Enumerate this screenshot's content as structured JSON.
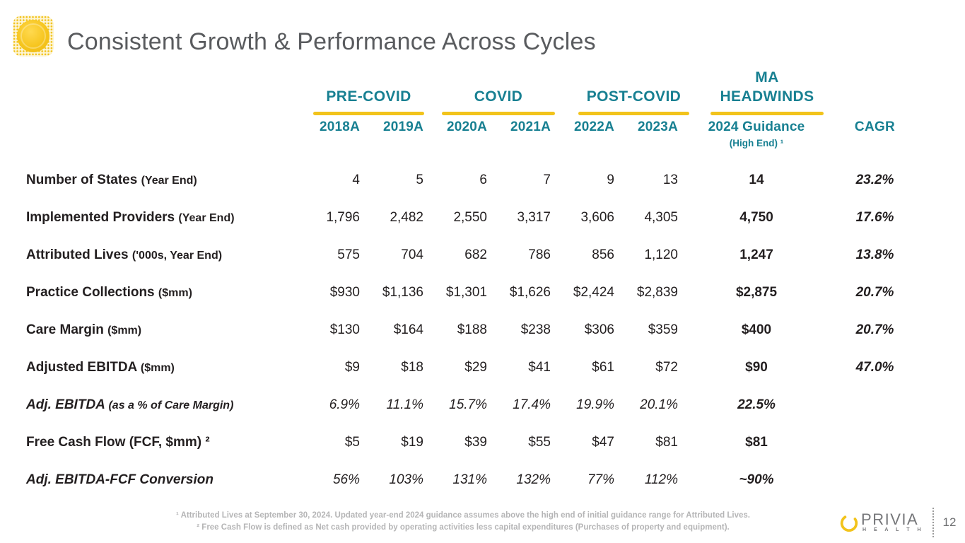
{
  "colors": {
    "teal": "#188092",
    "yellow": "#F2C31B",
    "title_text": "#595B5E",
    "body_text": "#231F20",
    "footnote_text": "#B5B5B6"
  },
  "slide": {
    "title": "Consistent Growth & Performance Across Cycles",
    "page_number": "12"
  },
  "table": {
    "groups": [
      {
        "lines": [
          "PRE-COVID"
        ]
      },
      {
        "lines": [
          "COVID"
        ]
      },
      {
        "lines": [
          "POST-COVID"
        ]
      },
      {
        "lines": [
          "MA",
          "HEADWINDS"
        ]
      }
    ],
    "columns": [
      "2018A",
      "2019A",
      "2020A",
      "2021A",
      "2022A",
      "2023A"
    ],
    "guidance_header": "2024 Guidance",
    "guidance_subheader": "(High End) ¹",
    "cagr_header": "CAGR",
    "rows": [
      {
        "label": "Number of States",
        "suffix": "(Year End)",
        "italic": false,
        "values": [
          "4",
          "5",
          "6",
          "7",
          "9",
          "13"
        ],
        "guidance": "14",
        "cagr": "23.2%"
      },
      {
        "label": "Implemented Providers",
        "suffix": "(Year End)",
        "italic": false,
        "values": [
          "1,796",
          "2,482",
          "2,550",
          "3,317",
          "3,606",
          "4,305"
        ],
        "guidance": "4,750",
        "cagr": "17.6%"
      },
      {
        "label": "Attributed Lives",
        "suffix": "('000s, Year End)",
        "italic": false,
        "values": [
          "575",
          "704",
          "682",
          "786",
          "856",
          "1,120"
        ],
        "guidance": "1,247",
        "cagr": "13.8%"
      },
      {
        "label": "Practice Collections",
        "suffix": "($mm)",
        "italic": false,
        "values": [
          "$930",
          "$1,136",
          "$1,301",
          "$1,626",
          "$2,424",
          "$2,839"
        ],
        "guidance": "$2,875",
        "cagr": "20.7%"
      },
      {
        "label": "Care Margin",
        "suffix": "($mm)",
        "italic": false,
        "values": [
          "$130",
          "$164",
          "$188",
          "$238",
          "$306",
          "$359"
        ],
        "guidance": "$400",
        "cagr": "20.7%"
      },
      {
        "label": "Adjusted EBITDA",
        "suffix": "($mm)",
        "italic": false,
        "values": [
          "$9",
          "$18",
          "$29",
          "$41",
          "$61",
          "$72"
        ],
        "guidance": "$90",
        "cagr": "47.0%"
      },
      {
        "label": "Adj. EBITDA",
        "suffix": "(as a % of Care Margin)",
        "italic": true,
        "values": [
          "6.9%",
          "11.1%",
          "15.7%",
          "17.4%",
          "19.9%",
          "20.1%"
        ],
        "guidance": "22.5%",
        "cagr": ""
      },
      {
        "label": "Free Cash Flow (FCF, $mm) ²",
        "suffix": "",
        "italic": false,
        "values": [
          "$5",
          "$19",
          "$39",
          "$55",
          "$47",
          "$81"
        ],
        "guidance": "$81",
        "cagr": ""
      },
      {
        "label": "Adj. EBITDA-FCF Conversion",
        "suffix": "",
        "italic": true,
        "values": [
          "56%",
          "103%",
          "131%",
          "132%",
          "77%",
          "112%"
        ],
        "guidance": "~90%",
        "cagr": ""
      }
    ]
  },
  "footnotes": [
    "¹ Attributed Lives at September 30, 2024. Updated year-end 2024 guidance assumes above the high end of initial guidance range for Attributed Lives.",
    "² Free Cash Flow is defined as Net cash provided by operating activities less capital expenditures (Purchases of property and equipment)."
  ],
  "footer": {
    "brand_name": "PRIVIA",
    "brand_sub": "H E A L T H",
    "page": "12"
  }
}
